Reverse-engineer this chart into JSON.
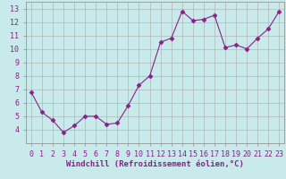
{
  "x": [
    0,
    1,
    2,
    3,
    4,
    5,
    6,
    7,
    8,
    9,
    10,
    11,
    12,
    13,
    14,
    15,
    16,
    17,
    18,
    19,
    20,
    21,
    22,
    23
  ],
  "y": [
    6.8,
    5.3,
    4.7,
    3.8,
    4.3,
    5.0,
    5.0,
    4.4,
    4.5,
    5.8,
    7.3,
    8.0,
    10.5,
    10.8,
    12.8,
    12.1,
    12.2,
    12.5,
    10.1,
    10.3,
    10.0,
    10.8,
    11.5,
    12.8
  ],
  "line_color": "#882288",
  "marker": "D",
  "marker_size": 2.5,
  "background_color": "#c8eaea",
  "grid_color": "#aaaaaa",
  "tick_color": "#882288",
  "xlabel": "Windchill (Refroidissement éolien,°C)",
  "xlabel_fontsize": 6.5,
  "tick_fontsize": 6,
  "ylim": [
    3.0,
    13.5
  ],
  "xlim": [
    -0.5,
    23.5
  ],
  "yticks": [
    4,
    5,
    6,
    7,
    8,
    9,
    10,
    11,
    12,
    13
  ],
  "xtick_labels": [
    "0",
    "1",
    "2",
    "3",
    "4",
    "5",
    "6",
    "7",
    "8",
    "9",
    "10",
    "11",
    "12",
    "13",
    "14",
    "15",
    "16",
    "17",
    "18",
    "19",
    "20",
    "21",
    "22",
    "23"
  ],
  "line_width": 0.8
}
